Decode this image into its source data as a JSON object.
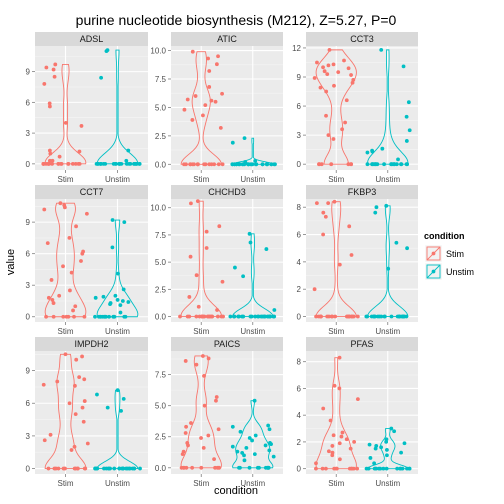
{
  "chart_data": {
    "type": "violin",
    "title": "purine nucleotide biosynthesis (M212), Z=5.27, P=0",
    "xlabel": "condition",
    "ylabel": "value",
    "categories": [
      "Stim",
      "Unstim"
    ],
    "legend": {
      "title": "condition",
      "placement": "right",
      "entries": [
        {
          "label": "Stim",
          "color": "#F8766D"
        },
        {
          "label": "Unstim",
          "color": "#00BFC4"
        }
      ]
    },
    "grid": true,
    "facets": [
      {
        "name": "ADSL",
        "ylim": [
          -0.6,
          11.5
        ],
        "yticks": [
          0,
          3,
          6,
          9
        ],
        "points": {
          "Stim": [
            9.7,
            9.4,
            9.2,
            8.5,
            7.8,
            5.9,
            5.6,
            4.0,
            3.7,
            1.3,
            1.2,
            1.0,
            0.7,
            0.3,
            0.3,
            0,
            0,
            0,
            0,
            0,
            0,
            0,
            0,
            0,
            0,
            0,
            0,
            0,
            0,
            0,
            0,
            0,
            0
          ],
          "Unstim": [
            11.1,
            11.0,
            8.4,
            1.3,
            0.3,
            0,
            0,
            0,
            0,
            0,
            0,
            0,
            0,
            0,
            0,
            0,
            0,
            0,
            0,
            0,
            0,
            0,
            0,
            0,
            0,
            0,
            0,
            0,
            0,
            0
          ]
        }
      },
      {
        "name": "ATIC",
        "ylim": [
          -0.5,
          10.4
        ],
        "yticks": [
          0.0,
          2.5,
          5.0,
          7.5,
          10.0
        ],
        "points": {
          "Stim": [
            9.9,
            9.5,
            9.3,
            8.8,
            8.2,
            6.8,
            6.2,
            6.0,
            5.7,
            5.6,
            5.5,
            5.2,
            4.8,
            4.3,
            3.9,
            3.2,
            0,
            0,
            0,
            0,
            0,
            0,
            0,
            0,
            0,
            0,
            0,
            0,
            0,
            0,
            0,
            0
          ],
          "Unstim": [
            2.3,
            1.9,
            0.3,
            0.2,
            0.1,
            0,
            0,
            0,
            0,
            0,
            0,
            0,
            0,
            0,
            0,
            0,
            0,
            0,
            0,
            0,
            0,
            0,
            0,
            0,
            0,
            0,
            0,
            0,
            0,
            0,
            0,
            0
          ]
        }
      },
      {
        "name": "CCT3",
        "ylim": [
          -0.6,
          12.2
        ],
        "yticks": [
          0,
          3,
          6,
          9,
          12
        ],
        "points": {
          "Stim": [
            11.8,
            10.7,
            10.5,
            10.3,
            10.2,
            10.0,
            9.9,
            9.6,
            9.5,
            9.3,
            9.2,
            8.9,
            8.7,
            8.4,
            8.1,
            7.9,
            7.5,
            6.6,
            5.0,
            4.3,
            3.6,
            3.0,
            2.6,
            0,
            0,
            0,
            0,
            0,
            0,
            0
          ],
          "Unstim": [
            11.8,
            10.1,
            6.4,
            4.9,
            3.5,
            2.4,
            1.6,
            1.4,
            1.3,
            1.2,
            0.5,
            0,
            0,
            0,
            0,
            0,
            0,
            0,
            0,
            0,
            0,
            0,
            0,
            0,
            0,
            0,
            0,
            0,
            0,
            0
          ]
        }
      },
      {
        "name": "CCT7",
        "ylim": [
          -0.5,
          11.2
        ],
        "yticks": [
          0,
          3,
          6,
          9
        ],
        "points": {
          "Stim": [
            10.8,
            10.6,
            10.4,
            10.2,
            9.8,
            8.6,
            7.5,
            7.0,
            6.2,
            6.0,
            5.3,
            4.8,
            4.2,
            3.5,
            2.5,
            2.0,
            1.8,
            1.6,
            1.3,
            1.0,
            0.6,
            0,
            0,
            0,
            0,
            0,
            0,
            0
          ],
          "Unstim": [
            9.2,
            9.0,
            6.6,
            4.1,
            2.6,
            2.0,
            1.9,
            1.8,
            1.6,
            1.5,
            1.4,
            1.3,
            1.2,
            1.1,
            0.4,
            0,
            0,
            0,
            0,
            0,
            0,
            0,
            0,
            0,
            0,
            0,
            0,
            0,
            0,
            0
          ]
        }
      },
      {
        "name": "CHCHD3",
        "ylim": [
          -0.5,
          10.8
        ],
        "yticks": [
          0.0,
          2.5,
          5.0,
          7.5,
          10.0
        ],
        "points": {
          "Stim": [
            10.6,
            10.4,
            8.3,
            7.8,
            6.3,
            5.5,
            3.8,
            3.2,
            1.8,
            0.9,
            0.6,
            0,
            0,
            0,
            0,
            0,
            0,
            0,
            0,
            0,
            0,
            0,
            0,
            0,
            0,
            0,
            0,
            0,
            0,
            0
          ],
          "Unstim": [
            7.6,
            6.8,
            6.2,
            4.5,
            3.7,
            0.6,
            0,
            0,
            0,
            0,
            0,
            0,
            0,
            0,
            0,
            0,
            0,
            0,
            0,
            0,
            0,
            0,
            0,
            0,
            0,
            0,
            0,
            0,
            0,
            0
          ]
        }
      },
      {
        "name": "FKBP3",
        "ylim": [
          -0.4,
          8.6
        ],
        "yticks": [
          0,
          2,
          4,
          6,
          8
        ],
        "points": {
          "Stim": [
            8.4,
            8.3,
            8.3,
            7.6,
            7.3,
            6.6,
            6.0,
            4.5,
            3.8,
            2.0,
            0,
            0,
            0,
            0,
            0,
            0,
            0,
            0,
            0,
            0,
            0,
            0,
            0,
            0,
            0,
            0,
            0,
            0,
            0,
            0
          ],
          "Unstim": [
            8.1,
            8.0,
            7.6,
            5.4,
            5.0,
            3.5,
            0,
            0,
            0,
            0,
            0,
            0,
            0,
            0,
            0,
            0,
            0,
            0,
            0,
            0,
            0,
            0,
            0,
            0,
            0,
            0,
            0,
            0,
            0,
            0
          ]
        }
      },
      {
        "name": "IMPDH2",
        "ylim": [
          -0.5,
          10.8
        ],
        "yticks": [
          0,
          3,
          6,
          9
        ],
        "points": {
          "Stim": [
            10.5,
            10.3,
            10.0,
            8.4,
            8.2,
            8.0,
            7.7,
            7.6,
            6.2,
            6.0,
            5.6,
            5.0,
            4.3,
            3.1,
            2.6,
            2.3,
            2.0,
            1.7,
            0,
            0,
            0,
            0,
            0,
            0,
            0,
            0,
            0,
            0,
            0,
            0
          ],
          "Unstim": [
            7.2,
            6.8,
            6.4,
            5.6,
            5.3,
            0,
            0,
            0,
            0,
            0,
            0,
            0,
            0,
            0,
            0,
            0,
            0,
            0,
            0,
            0,
            0,
            0,
            0,
            0,
            0,
            0,
            0,
            0,
            0,
            0
          ]
        }
      },
      {
        "name": "PAICS",
        "ylim": [
          -0.5,
          9.4
        ],
        "yticks": [
          0.0,
          2.5,
          5.0,
          7.5
        ],
        "points": {
          "Stim": [
            9.0,
            8.8,
            8.6,
            8.3,
            7.4,
            5.7,
            5.4,
            5.0,
            3.6,
            3.3,
            3.1,
            2.8,
            2.6,
            2.4,
            2.0,
            1.8,
            1.6,
            1.3,
            1.1,
            0.7,
            0,
            0,
            0,
            0,
            0,
            0,
            0,
            0,
            0,
            0
          ],
          "Unstim": [
            5.4,
            3.4,
            3.3,
            3.1,
            2.9,
            2.6,
            2.4,
            2.2,
            2.0,
            1.9,
            1.8,
            1.7,
            1.6,
            1.4,
            1.3,
            1.2,
            1.1,
            1.0,
            0.9,
            0.6,
            0,
            0,
            0,
            0,
            0,
            0,
            0,
            0,
            0,
            0
          ]
        }
      },
      {
        "name": "PFAS",
        "ylim": [
          -0.4,
          8.8
        ],
        "yticks": [
          0,
          2,
          4,
          6,
          8
        ],
        "points": {
          "Stim": [
            8.3,
            6.2,
            6.0,
            5.2,
            4.5,
            3.6,
            2.7,
            2.5,
            2.4,
            2.2,
            2.0,
            1.9,
            1.7,
            1.5,
            1.3,
            1.2,
            1.0,
            0.7,
            0.4,
            0,
            0,
            0,
            0,
            0,
            0,
            0,
            0,
            0,
            0,
            0
          ],
          "Unstim": [
            3.0,
            2.8,
            2.2,
            2.0,
            1.9,
            1.8,
            1.7,
            1.6,
            1.5,
            1.4,
            1.2,
            1.0,
            0.8,
            0.4,
            0,
            0,
            0,
            0,
            0,
            0,
            0,
            0,
            0,
            0,
            0,
            0,
            0,
            0,
            0,
            0
          ]
        }
      }
    ]
  }
}
